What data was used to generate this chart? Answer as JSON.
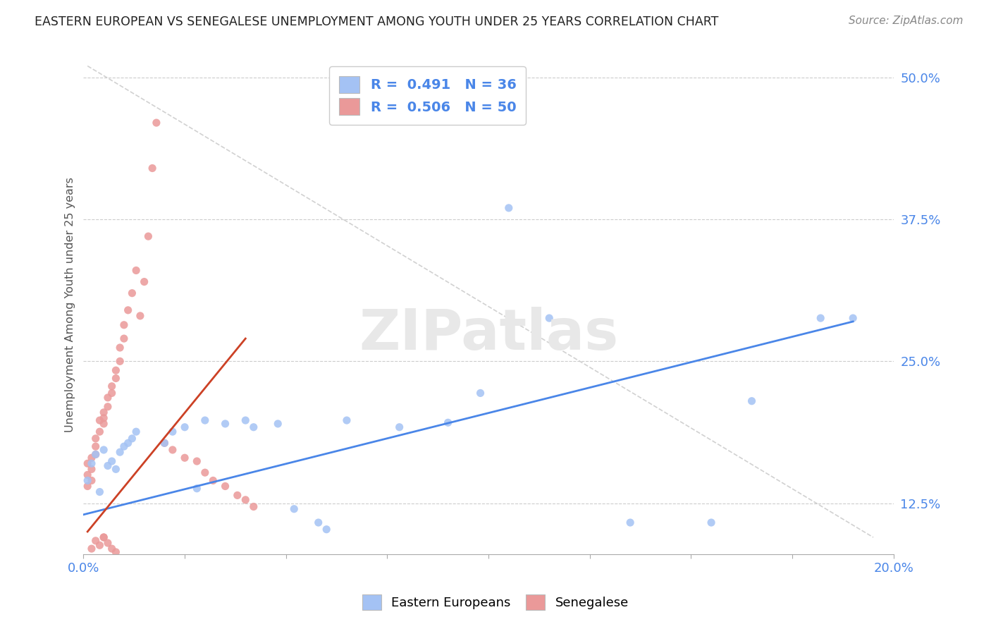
{
  "title": "EASTERN EUROPEAN VS SENEGALESE UNEMPLOYMENT AMONG YOUTH UNDER 25 YEARS CORRELATION CHART",
  "source": "Source: ZipAtlas.com",
  "ylabel": "Unemployment Among Youth under 25 years",
  "xlim": [
    0.0,
    0.2
  ],
  "ylim": [
    0.08,
    0.52
  ],
  "xticks": [
    0.0,
    0.025,
    0.05,
    0.075,
    0.1,
    0.125,
    0.15,
    0.175,
    0.2
  ],
  "ytick_labels_right": [
    "12.5%",
    "25.0%",
    "37.5%",
    "50.0%"
  ],
  "yticks_right": [
    0.125,
    0.25,
    0.375,
    0.5
  ],
  "legend_r_blue": "R =  0.491   N = 36",
  "legend_r_pink": "R =  0.506   N = 50",
  "blue_color": "#a4c2f4",
  "pink_color": "#ea9999",
  "blue_line_color": "#4a86e8",
  "pink_line_color": "#cc4125",
  "diag_line_color": "#cccccc",
  "background_color": "#ffffff",
  "watermark": "ZIPatlas",
  "blue_scatter_x": [
    0.001,
    0.002,
    0.003,
    0.004,
    0.005,
    0.006,
    0.007,
    0.008,
    0.009,
    0.01,
    0.011,
    0.012,
    0.013,
    0.02,
    0.022,
    0.025,
    0.028,
    0.03,
    0.035,
    0.04,
    0.042,
    0.048,
    0.052,
    0.058,
    0.06,
    0.065,
    0.078,
    0.09,
    0.098,
    0.105,
    0.115,
    0.135,
    0.155,
    0.165,
    0.182,
    0.19
  ],
  "blue_scatter_y": [
    0.145,
    0.16,
    0.168,
    0.135,
    0.172,
    0.158,
    0.162,
    0.155,
    0.17,
    0.175,
    0.178,
    0.182,
    0.188,
    0.178,
    0.188,
    0.192,
    0.138,
    0.198,
    0.195,
    0.198,
    0.192,
    0.195,
    0.12,
    0.108,
    0.102,
    0.198,
    0.192,
    0.196,
    0.222,
    0.385,
    0.288,
    0.108,
    0.108,
    0.215,
    0.288,
    0.288
  ],
  "pink_scatter_x": [
    0.001,
    0.001,
    0.001,
    0.002,
    0.002,
    0.002,
    0.003,
    0.003,
    0.003,
    0.004,
    0.004,
    0.005,
    0.005,
    0.005,
    0.006,
    0.006,
    0.007,
    0.007,
    0.008,
    0.008,
    0.009,
    0.009,
    0.01,
    0.01,
    0.011,
    0.012,
    0.013,
    0.014,
    0.015,
    0.016,
    0.017,
    0.018,
    0.02,
    0.022,
    0.025,
    0.028,
    0.03,
    0.032,
    0.035,
    0.038,
    0.04,
    0.042,
    0.005,
    0.006,
    0.007,
    0.008,
    0.002,
    0.003,
    0.004,
    0.005
  ],
  "pink_scatter_y": [
    0.14,
    0.15,
    0.16,
    0.145,
    0.155,
    0.165,
    0.168,
    0.175,
    0.182,
    0.188,
    0.198,
    0.195,
    0.2,
    0.205,
    0.21,
    0.218,
    0.222,
    0.228,
    0.235,
    0.242,
    0.25,
    0.262,
    0.27,
    0.282,
    0.295,
    0.31,
    0.33,
    0.29,
    0.32,
    0.36,
    0.42,
    0.46,
    0.178,
    0.172,
    0.165,
    0.162,
    0.152,
    0.145,
    0.14,
    0.132,
    0.128,
    0.122,
    0.095,
    0.09,
    0.085,
    0.082,
    0.085,
    0.092,
    0.088,
    0.095
  ],
  "blue_line_x": [
    0.0,
    0.19
  ],
  "blue_line_y": [
    0.115,
    0.285
  ],
  "pink_line_x": [
    0.001,
    0.04
  ],
  "pink_line_y": [
    0.1,
    0.27
  ],
  "diag_line_x": [
    0.001,
    0.195
  ],
  "diag_line_y": [
    0.51,
    0.095
  ]
}
